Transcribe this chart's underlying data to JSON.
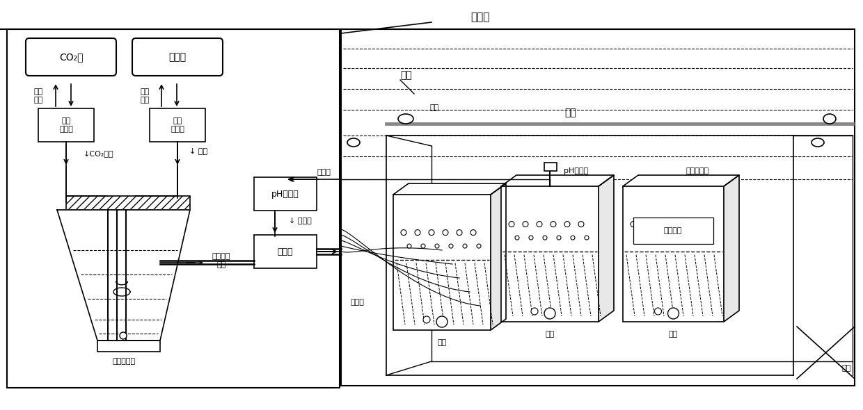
{
  "bg_color": "#ffffff",
  "figsize": [
    12.4,
    5.9
  ],
  "dpi": 100,
  "labels": {
    "pingtai": "平台面",
    "co2_tank": "CO₂罐",
    "air_tank": "空气罐",
    "auto_flow1": "自动\n控流计",
    "auto_flow2": "自动\n控流计",
    "qiya_xinhao1": "气压\n信号",
    "qiya_xinhao2": "气压\n信号",
    "co2_gas": "↓CO₂气体",
    "air_label": "↓ 空气",
    "baohe": "饱和酸性\n气体",
    "jiliang_pump": "计量泵",
    "ph_transmitter": "pH变送器",
    "electric_signal1": "电信号",
    "electric_signal2": "↓ 电信号",
    "cone_bottle": "锥形缓冲瓶",
    "haishui": "海水",
    "fuqiu": "浮球",
    "haimian": "海面",
    "ph_sensor": "pH传感器",
    "double_tank": "双层实验池",
    "shiyan_bio": "实验生物",
    "fenliuguan": "分流管",
    "qishi1": "气石",
    "qishi2": "气石",
    "qishi3": "气石",
    "weiwang": "围网"
  }
}
